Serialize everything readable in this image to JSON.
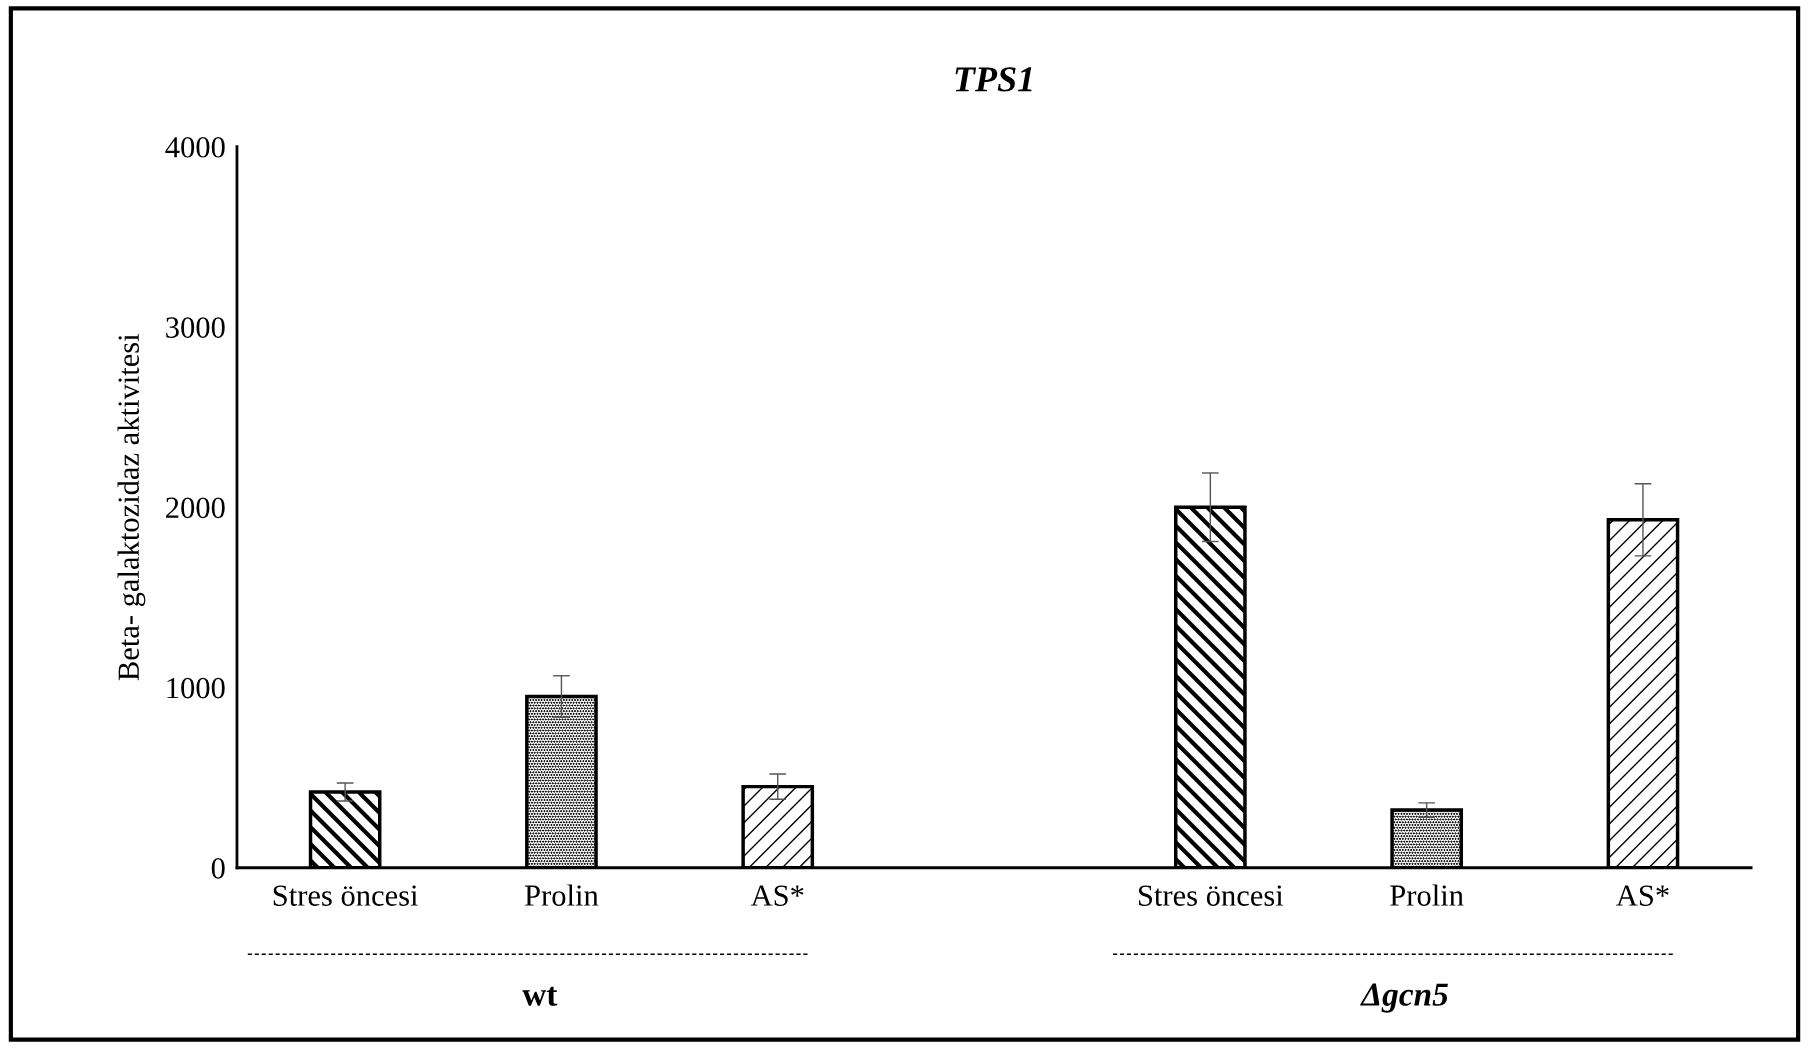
{
  "chart_data": {
    "type": "bar",
    "title": "TPS1",
    "ylabel": "Beta- galaktozidaz aktivitesi",
    "categories": [
      "Stres öncesi",
      "Prolin",
      "AS*",
      null,
      "Stres öncesi",
      "Prolin",
      "AS*"
    ],
    "values": [
      420,
      950,
      450,
      null,
      2000,
      320,
      1930
    ],
    "errors": [
      50,
      115,
      70,
      null,
      190,
      40,
      200
    ],
    "colors": [
      "#000000",
      "#000000",
      "#000000",
      null,
      "#000000",
      "#000000",
      "#000000"
    ],
    "ylim": [
      0,
      4000
    ],
    "yticks": [
      0,
      1000,
      2000,
      3000,
      4000
    ],
    "grid": false,
    "annotations": [
      "wt",
      "Δgcn5"
    ]
  }
}
